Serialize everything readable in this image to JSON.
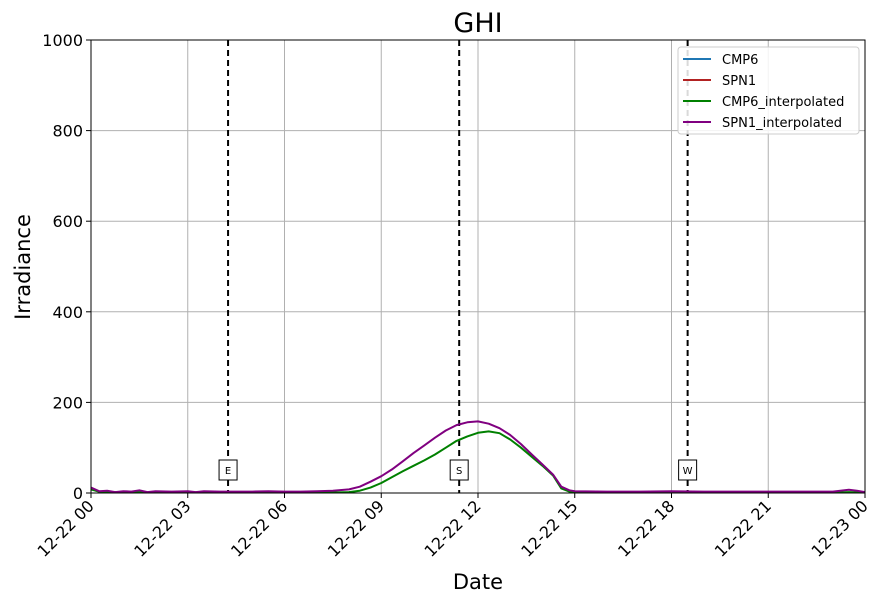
{
  "chart_data": {
    "type": "line",
    "title": "GHI",
    "xlabel": "Date",
    "ylabel": "Irradiance",
    "ylim": [
      0,
      1000
    ],
    "xlim": [
      "12-22 00:00",
      "12-23 00:00"
    ],
    "x_tick_labels": [
      "12-22 00",
      "12-22 03",
      "12-22 06",
      "12-22 09",
      "12-22 12",
      "12-22 15",
      "12-22 18",
      "12-22 21",
      "12-23 00"
    ],
    "y_ticks": [
      0,
      200,
      400,
      600,
      800,
      1000
    ],
    "grid": true,
    "legend_position": "top-right",
    "markers": [
      {
        "label": "E",
        "time": "12-22 04:15"
      },
      {
        "label": "S",
        "time": "12-22 11:25"
      },
      {
        "label": "W",
        "time": "12-22 18:30"
      }
    ],
    "series": [
      {
        "name": "CMP6",
        "color": "#1f77b4",
        "points": []
      },
      {
        "name": "SPN1",
        "color": "#b22222",
        "points": []
      },
      {
        "name": "CMP6_interpolated",
        "color": "#008000",
        "points": [
          [
            "12-22 00:00",
            8
          ],
          [
            "12-22 00:15",
            3
          ],
          [
            "12-22 00:30",
            2
          ],
          [
            "12-22 01:00",
            2
          ],
          [
            "12-22 01:30",
            2
          ],
          [
            "12-22 02:00",
            1
          ],
          [
            "12-22 02:30",
            2
          ],
          [
            "12-22 03:00",
            1
          ],
          [
            "12-22 03:30",
            2
          ],
          [
            "12-22 04:00",
            1
          ],
          [
            "12-22 04:30",
            1
          ],
          [
            "12-22 05:00",
            1
          ],
          [
            "12-22 05:30",
            1
          ],
          [
            "12-22 06:00",
            1
          ],
          [
            "12-22 06:30",
            1
          ],
          [
            "12-22 07:00",
            1
          ],
          [
            "12-22 07:30",
            1
          ],
          [
            "12-22 08:00",
            2
          ],
          [
            "12-22 08:20",
            5
          ],
          [
            "12-22 08:40",
            12
          ],
          [
            "12-22 09:00",
            22
          ],
          [
            "12-22 09:20",
            35
          ],
          [
            "12-22 09:40",
            48
          ],
          [
            "12-22 10:00",
            60
          ],
          [
            "12-22 10:20",
            72
          ],
          [
            "12-22 10:40",
            85
          ],
          [
            "12-22 11:00",
            100
          ],
          [
            "12-22 11:20",
            115
          ],
          [
            "12-22 11:40",
            125
          ],
          [
            "12-22 12:00",
            133
          ],
          [
            "12-22 12:20",
            136
          ],
          [
            "12-22 12:40",
            132
          ],
          [
            "12-22 13:00",
            118
          ],
          [
            "12-22 13:20",
            100
          ],
          [
            "12-22 13:40",
            80
          ],
          [
            "12-22 14:00",
            60
          ],
          [
            "12-22 14:20",
            38
          ],
          [
            "12-22 14:35",
            10
          ],
          [
            "12-22 14:50",
            3
          ],
          [
            "12-22 15:00",
            1
          ],
          [
            "12-22 16:00",
            1
          ],
          [
            "12-22 17:00",
            1
          ],
          [
            "12-22 18:00",
            1
          ],
          [
            "12-22 19:00",
            1
          ],
          [
            "12-22 20:00",
            1
          ],
          [
            "12-22 21:00",
            1
          ],
          [
            "12-22 22:00",
            1
          ],
          [
            "12-22 23:00",
            1
          ],
          [
            "12-22 23:30",
            2
          ],
          [
            "12-23 00:00",
            1
          ]
        ]
      },
      {
        "name": "SPN1_interpolated",
        "color": "#800080",
        "points": [
          [
            "12-22 00:00",
            12
          ],
          [
            "12-22 00:15",
            4
          ],
          [
            "12-22 00:30",
            5
          ],
          [
            "12-22 00:45",
            2
          ],
          [
            "12-22 01:00",
            4
          ],
          [
            "12-22 01:15",
            3
          ],
          [
            "12-22 01:30",
            6
          ],
          [
            "12-22 01:45",
            2
          ],
          [
            "12-22 02:00",
            4
          ],
          [
            "12-22 02:30",
            3
          ],
          [
            "12-22 03:00",
            4
          ],
          [
            "12-22 03:15",
            2
          ],
          [
            "12-22 03:30",
            4
          ],
          [
            "12-22 04:00",
            3
          ],
          [
            "12-22 04:30",
            3
          ],
          [
            "12-22 05:00",
            3
          ],
          [
            "12-22 05:30",
            4
          ],
          [
            "12-22 06:00",
            3
          ],
          [
            "12-22 06:30",
            3
          ],
          [
            "12-22 07:00",
            4
          ],
          [
            "12-22 07:30",
            5
          ],
          [
            "12-22 08:00",
            8
          ],
          [
            "12-22 08:20",
            14
          ],
          [
            "12-22 08:40",
            25
          ],
          [
            "12-22 09:00",
            37
          ],
          [
            "12-22 09:20",
            52
          ],
          [
            "12-22 09:40",
            70
          ],
          [
            "12-22 10:00",
            88
          ],
          [
            "12-22 10:20",
            105
          ],
          [
            "12-22 10:40",
            122
          ],
          [
            "12-22 11:00",
            138
          ],
          [
            "12-22 11:20",
            150
          ],
          [
            "12-22 11:40",
            156
          ],
          [
            "12-22 12:00",
            158
          ],
          [
            "12-22 12:20",
            153
          ],
          [
            "12-22 12:40",
            143
          ],
          [
            "12-22 13:00",
            128
          ],
          [
            "12-22 13:20",
            108
          ],
          [
            "12-22 13:40",
            85
          ],
          [
            "12-22 14:00",
            63
          ],
          [
            "12-22 14:20",
            40
          ],
          [
            "12-22 14:35",
            14
          ],
          [
            "12-22 14:50",
            6
          ],
          [
            "12-22 15:00",
            4
          ],
          [
            "12-22 16:00",
            3
          ],
          [
            "12-22 17:00",
            3
          ],
          [
            "12-22 18:00",
            4
          ],
          [
            "12-22 19:00",
            3
          ],
          [
            "12-22 20:00",
            3
          ],
          [
            "12-22 21:00",
            3
          ],
          [
            "12-22 22:00",
            3
          ],
          [
            "12-22 23:00",
            3
          ],
          [
            "12-22 23:30",
            7
          ],
          [
            "12-22 23:45",
            5
          ],
          [
            "12-23 00:00",
            2
          ]
        ]
      }
    ]
  }
}
